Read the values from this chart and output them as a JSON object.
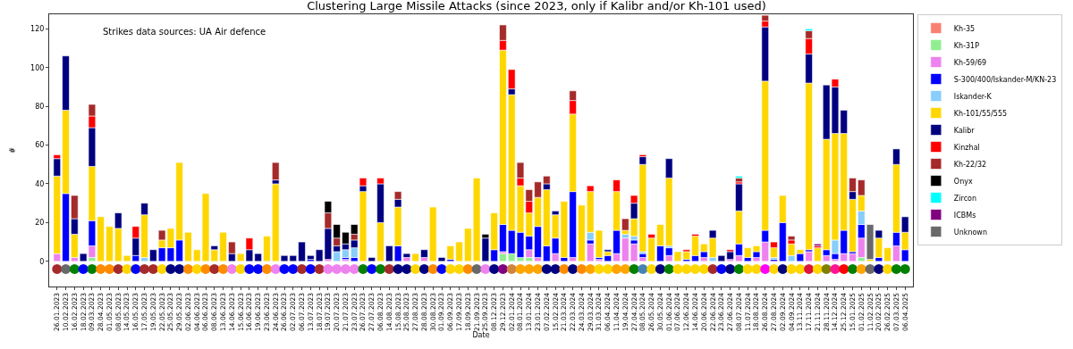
{
  "chart_data": {
    "type": "bar",
    "stacked": true,
    "title": "Clustering Large Missile Attacks (since 2023, only if Kalibr and/or Kh-101 used)",
    "xlabel": "Date",
    "ylabel": "#",
    "annotations": [
      "Strikes data sources: UA Air defence"
    ],
    "legend": "top right",
    "ylim": [
      -13,
      127.5
    ],
    "yticks": [
      0,
      20,
      40,
      60,
      80,
      100,
      120
    ],
    "categories": [
      "26.01.2023",
      "10.02.2023",
      "16.02.2023",
      "18.02.2023",
      "09.03.2023",
      "28.04.2023",
      "01.05.2023",
      "08.05.2023",
      "14.05.2023",
      "16.05.2023",
      "17.05.2023",
      "19.05.2023",
      "22.05.2023",
      "25.05.2023",
      "29.05.2023",
      "02.06.2023",
      "04.06.2023",
      "06.06.2023",
      "08.06.2023",
      "13.06.2023",
      "14.06.2023",
      "15.06.2023",
      "16.06.2023",
      "19.06.2023",
      "23.06.2023",
      "24.06.2023",
      "26.06.2023",
      "02.07.2023",
      "06.07.2023",
      "13.07.2023",
      "18.07.2023",
      "19.07.2023",
      "20.07.2023",
      "21.07.2023",
      "23.07.2023",
      "26.07.2023",
      "27.07.2023",
      "06.08.2023",
      "14.08.2023",
      "15.08.2023",
      "25.08.2023",
      "27.08.2023",
      "28.08.2023",
      "30.08.2023",
      "01.09.2023",
      "06.09.2023",
      "17.09.2023",
      "18.09.2023",
      "21.09.2023",
      "25.09.2023",
      "08.12.2023",
      "29.12.2023",
      "02.01.2024",
      "08.01.2024",
      "13.01.2024",
      "23.01.2024",
      "07.02.2024",
      "15.02.2024",
      "21.03.2024",
      "22.03.2024",
      "24.03.2024",
      "29.03.2024",
      "31.03.2024",
      "06.04.2024",
      "11.04.2024",
      "19.04.2024",
      "27.04.2024",
      "08.05.2024",
      "26.05.2024",
      "30.05.2024",
      "01.06.2024",
      "07.06.2024",
      "12.06.2024",
      "14.06.2024",
      "20.06.2024",
      "22.06.2024",
      "23.06.2024",
      "27.06.2024",
      "08.07.2024",
      "11.07.2024",
      "18.08.2024",
      "26.08.2024",
      "27.08.2024",
      "02.09.2024",
      "04.09.2024",
      "13.11.2024",
      "17.11.2024",
      "21.11.2024",
      "28.11.2024",
      "14.12.2024",
      "25.12.2024",
      "15.01.2025",
      "01.02.2025",
      "11.02.2025",
      "20.02.2025",
      "26.02.2025",
      "07.03.2025",
      "06.04.2025"
    ],
    "series": [
      {
        "name": "Kh-35",
        "color": "#fa8072",
        "values": [
          null,
          null,
          null,
          null,
          null,
          null,
          null,
          null,
          null,
          null,
          null,
          null,
          null,
          null,
          null,
          null,
          null,
          null,
          null,
          null,
          null,
          null,
          null,
          null,
          null,
          null,
          null,
          null,
          null,
          null,
          null,
          null,
          null,
          null,
          null,
          null,
          null,
          null,
          null,
          null,
          null,
          null,
          null,
          null,
          null,
          null,
          null,
          null,
          null,
          null,
          null,
          null,
          null,
          null,
          null,
          null,
          null,
          null,
          null,
          null,
          null,
          null,
          null,
          null,
          null,
          null,
          null,
          null,
          null,
          null,
          null,
          null,
          null,
          null,
          null,
          null,
          null,
          null,
          null,
          null,
          null,
          null,
          null,
          null,
          null,
          null,
          null,
          null,
          null,
          null,
          null,
          null,
          null,
          null,
          null,
          null,
          null,
          null
        ]
      },
      {
        "name": "Kh-31P",
        "color": "#90ee90",
        "values": [
          null,
          null,
          null,
          null,
          2,
          null,
          null,
          null,
          null,
          null,
          null,
          null,
          null,
          null,
          null,
          null,
          null,
          null,
          null,
          null,
          null,
          null,
          null,
          null,
          null,
          null,
          null,
          null,
          null,
          null,
          null,
          null,
          null,
          null,
          null,
          null,
          null,
          null,
          null,
          null,
          null,
          null,
          null,
          null,
          null,
          null,
          null,
          null,
          null,
          null,
          null,
          4,
          4,
          2,
          2,
          null,
          null,
          null,
          null,
          null,
          null,
          null,
          null,
          null,
          null,
          null,
          null,
          null,
          null,
          null,
          null,
          null,
          null,
          null,
          null,
          null,
          null,
          null,
          null,
          null,
          null,
          null,
          null,
          null,
          null,
          null,
          null,
          null,
          null,
          null,
          null,
          null,
          2,
          null,
          null,
          null,
          null,
          null
        ]
      },
      {
        "name": "Kh-59/69",
        "color": "#ee82ee",
        "values": [
          4,
          null,
          2,
          null,
          6,
          null,
          null,
          null,
          null,
          null,
          null,
          null,
          null,
          null,
          null,
          null,
          null,
          null,
          null,
          null,
          null,
          null,
          null,
          null,
          null,
          null,
          null,
          null,
          null,
          null,
          null,
          1,
          null,
          1,
          null,
          null,
          null,
          null,
          null,
          null,
          2,
          null,
          2,
          null,
          null,
          null,
          null,
          null,
          null,
          null,
          null,
          1,
          null,
          null,
          4,
          2,
          null,
          4,
          null,
          2,
          null,
          9,
          1,
          null,
          4,
          12,
          9,
          2,
          null,
          null,
          3,
          null,
          null,
          null,
          2,
          null,
          null,
          1,
          3,
          null,
          2,
          10,
          null,
          null,
          null,
          null,
          5,
          null,
          3,
          1,
          4,
          4,
          10,
          null,
          null,
          null,
          8,
          null
        ]
      },
      {
        "name": "S-300/400/Iskander-M/KN-23",
        "color": "#0000ff",
        "values": [
          null,
          35,
          null,
          null,
          13,
          null,
          null,
          null,
          null,
          3,
          null,
          null,
          7,
          7,
          11,
          null,
          null,
          null,
          null,
          null,
          null,
          null,
          null,
          null,
          null,
          null,
          null,
          null,
          null,
          1,
          null,
          null,
          null,
          1,
          2,
          null,
          null,
          null,
          null,
          8,
          null,
          null,
          null,
          null,
          null,
          1,
          null,
          null,
          null,
          null,
          6,
          14,
          12,
          13,
          7,
          16,
          8,
          8,
          2,
          34,
          null,
          2,
          1,
          3,
          12,
          null,
          2,
          2,
          null,
          8,
          4,
          null,
          1,
          3,
          3,
          null,
          null,
          null,
          6,
          2,
          3,
          6,
          1,
          20,
          null,
          4,
          1,
          null,
          3,
          3,
          12,
          1,
          7,
          null,
          2,
          null,
          7,
          6
        ]
      },
      {
        "name": "Iskander-K",
        "color": "#87cefa",
        "values": [
          null,
          null,
          null,
          null,
          null,
          null,
          null,
          null,
          null,
          null,
          2,
          null,
          null,
          null,
          null,
          null,
          null,
          null,
          null,
          null,
          null,
          null,
          null,
          null,
          null,
          null,
          null,
          null,
          null,
          null,
          null,
          null,
          5,
          4,
          5,
          null,
          null,
          null,
          null,
          null,
          null,
          null,
          null,
          null,
          null,
          null,
          null,
          null,
          null,
          null,
          null,
          null,
          null,
          null,
          null,
          null,
          null,
          null,
          null,
          null,
          null,
          4,
          null,
          null,
          null,
          2,
          2,
          1,
          null,
          null,
          1,
          null,
          null,
          null,
          null,
          2,
          null,
          null,
          null,
          null,
          null,
          null,
          1,
          null,
          3,
          null,
          null,
          null,
          null,
          7,
          null,
          null,
          7,
          null,
          null,
          null,
          null,
          null
        ]
      },
      {
        "name": "Kh-101/55/555",
        "color": "#ffd700",
        "values": [
          40,
          43,
          12,
          null,
          28,
          23,
          18,
          17,
          3,
          null,
          22,
          null,
          4,
          10,
          40,
          15,
          6,
          35,
          6,
          15,
          null,
          4,
          null,
          null,
          13,
          40,
          null,
          null,
          null,
          null,
          null,
          null,
          null,
          null,
          null,
          36,
          null,
          20,
          null,
          20,
          null,
          4,
          null,
          28,
          null,
          7,
          10,
          17,
          43,
          null,
          19,
          90,
          70,
          24,
          12,
          15,
          29,
          12,
          29,
          40,
          29,
          21,
          14,
          2,
          20,
          2,
          9,
          45,
          12,
          11,
          35,
          5,
          4,
          10,
          4,
          10,
          null,
          null,
          17,
          5,
          3,
          77,
          5,
          14,
          6,
          2,
          86,
          7,
          57,
          55,
          50,
          27,
          8,
          1,
          10,
          7,
          35,
          9
        ]
      },
      {
        "name": "Kalibr",
        "color": "#000080",
        "values": [
          9,
          28,
          8,
          4,
          20,
          null,
          null,
          8,
          null,
          9,
          6,
          6,
          null,
          null,
          null,
          null,
          null,
          null,
          2,
          null,
          4,
          null,
          6,
          4,
          null,
          2,
          3,
          3,
          10,
          2,
          6,
          16,
          3,
          3,
          4,
          3,
          2,
          20,
          8,
          4,
          2,
          null,
          4,
          null,
          2,
          null,
          null,
          null,
          null,
          12,
          null,
          null,
          3,
          null,
          null,
          null,
          3,
          2,
          null,
          null,
          null,
          null,
          null,
          1,
          null,
          null,
          8,
          4,
          null,
          null,
          10,
          null,
          null,
          null,
          null,
          4,
          3,
          4,
          14,
          null,
          null,
          28,
          null,
          null,
          null,
          null,
          15,
          null,
          28,
          24,
          12,
          4,
          null,
          null,
          4,
          null,
          8,
          8
        ]
      },
      {
        "name": "Kinzhal",
        "color": "#ff0000",
        "values": [
          2,
          null,
          null,
          null,
          6,
          null,
          null,
          null,
          null,
          6,
          null,
          null,
          null,
          null,
          null,
          null,
          null,
          null,
          null,
          null,
          null,
          null,
          6,
          null,
          null,
          null,
          null,
          null,
          null,
          null,
          null,
          null,
          null,
          null,
          null,
          4,
          null,
          3,
          null,
          null,
          null,
          null,
          null,
          null,
          null,
          null,
          null,
          null,
          null,
          null,
          null,
          5,
          10,
          4,
          6,
          null,
          null,
          null,
          null,
          7,
          null,
          3,
          null,
          null,
          6,
          null,
          4,
          1,
          2,
          null,
          null,
          null,
          1,
          1,
          null,
          null,
          null,
          1,
          1,
          null,
          null,
          3,
          3,
          null,
          2,
          null,
          8,
          1,
          null,
          4,
          null,
          null,
          null,
          null,
          null,
          null,
          null,
          null
        ]
      },
      {
        "name": "Kh-22/32",
        "color": "#a52a2a",
        "values": [
          null,
          null,
          12,
          null,
          6,
          null,
          null,
          null,
          null,
          null,
          null,
          null,
          5,
          null,
          null,
          null,
          null,
          null,
          null,
          null,
          6,
          null,
          null,
          null,
          null,
          9,
          null,
          null,
          null,
          null,
          null,
          8,
          4,
          null,
          3,
          null,
          null,
          null,
          null,
          4,
          null,
          null,
          null,
          null,
          null,
          null,
          null,
          null,
          null,
          null,
          null,
          8,
          null,
          8,
          6,
          8,
          4,
          null,
          null,
          5,
          null,
          null,
          null,
          null,
          null,
          6,
          null,
          null,
          null,
          null,
          null,
          null,
          null,
          null,
          null,
          null,
          null,
          null,
          2,
          null,
          null,
          3,
          null,
          null,
          2,
          null,
          4,
          null,
          null,
          null,
          null,
          7,
          8,
          null,
          null,
          null,
          null,
          null
        ]
      },
      {
        "name": "Onyx",
        "color": "#000000",
        "values": [
          null,
          null,
          null,
          null,
          null,
          null,
          null,
          null,
          null,
          null,
          null,
          null,
          null,
          null,
          null,
          null,
          null,
          null,
          null,
          null,
          null,
          null,
          null,
          null,
          null,
          null,
          null,
          null,
          null,
          null,
          null,
          6,
          7,
          6,
          5,
          null,
          null,
          null,
          null,
          null,
          null,
          null,
          null,
          null,
          null,
          null,
          null,
          null,
          null,
          2,
          null,
          null,
          null,
          null,
          null,
          null,
          null,
          null,
          null,
          null,
          null,
          null,
          null,
          null,
          null,
          null,
          null,
          null,
          null,
          null,
          null,
          null,
          null,
          null,
          null,
          null,
          null,
          null,
          null,
          null,
          null,
          null,
          null,
          null,
          null,
          null,
          null,
          null,
          null,
          null,
          null,
          null,
          null,
          null,
          null,
          null,
          null,
          null
        ]
      },
      {
        "name": "Zircon",
        "color": "#00ffff",
        "values": [
          null,
          null,
          null,
          null,
          null,
          null,
          null,
          null,
          null,
          null,
          null,
          null,
          null,
          null,
          null,
          null,
          null,
          null,
          null,
          null,
          null,
          null,
          null,
          null,
          null,
          null,
          null,
          null,
          null,
          null,
          null,
          null,
          null,
          null,
          null,
          null,
          null,
          null,
          null,
          null,
          null,
          null,
          null,
          null,
          null,
          null,
          null,
          null,
          null,
          null,
          null,
          null,
          null,
          null,
          null,
          null,
          null,
          null,
          null,
          null,
          null,
          null,
          null,
          null,
          null,
          null,
          null,
          null,
          null,
          null,
          null,
          null,
          null,
          null,
          null,
          null,
          null,
          null,
          1,
          null,
          null,
          null,
          null,
          null,
          null,
          null,
          1,
          null,
          null,
          null,
          null,
          null,
          null,
          null,
          null,
          null,
          null,
          null
        ]
      },
      {
        "name": "ICBMs",
        "color": "#800080",
        "values": [
          null,
          null,
          null,
          null,
          null,
          null,
          null,
          null,
          null,
          null,
          null,
          null,
          null,
          null,
          null,
          null,
          null,
          null,
          null,
          null,
          null,
          null,
          null,
          null,
          null,
          null,
          null,
          null,
          null,
          null,
          null,
          null,
          null,
          null,
          null,
          null,
          null,
          null,
          null,
          null,
          null,
          null,
          null,
          null,
          null,
          null,
          null,
          null,
          null,
          null,
          null,
          null,
          null,
          null,
          null,
          null,
          null,
          null,
          null,
          null,
          null,
          null,
          null,
          null,
          null,
          null,
          null,
          null,
          null,
          null,
          null,
          null,
          null,
          null,
          null,
          null,
          null,
          null,
          null,
          null,
          null,
          null,
          null,
          null,
          null,
          null,
          null,
          1,
          null,
          null,
          null,
          null,
          null,
          null,
          null,
          null,
          null,
          null
        ]
      },
      {
        "name": "Unknown",
        "color": "#696969",
        "values": [
          null,
          null,
          null,
          null,
          null,
          null,
          null,
          null,
          null,
          null,
          null,
          null,
          null,
          null,
          null,
          null,
          null,
          null,
          null,
          null,
          null,
          null,
          null,
          null,
          null,
          null,
          null,
          null,
          null,
          null,
          null,
          null,
          null,
          null,
          null,
          null,
          null,
          null,
          null,
          null,
          null,
          null,
          null,
          null,
          null,
          null,
          null,
          null,
          null,
          null,
          null,
          null,
          null,
          null,
          null,
          null,
          null,
          null,
          null,
          null,
          null,
          null,
          null,
          null,
          null,
          null,
          null,
          null,
          null,
          null,
          null,
          null,
          null,
          null,
          null,
          null,
          null,
          null,
          null,
          null,
          null,
          null,
          null,
          null,
          null,
          null,
          null,
          null,
          null,
          null,
          null,
          null,
          null,
          18,
          null,
          null,
          null,
          null
        ]
      },
      {
        "type": "scatter",
        "marker": "circle",
        "values": [
          -4,
          -4,
          -4,
          -4,
          -4,
          -4,
          -4,
          -4,
          -4,
          -4,
          -4,
          -4,
          -4,
          -4,
          -4,
          -4,
          -4,
          -4,
          -4,
          -4,
          -4,
          -4,
          -4,
          -4,
          -4,
          -4,
          -4,
          -4,
          -4,
          -4,
          -4,
          -4,
          -4,
          -4,
          -4,
          -4,
          -4,
          -4,
          -4,
          -4,
          -4,
          -4,
          -4,
          -4,
          -4,
          -4,
          -4,
          -4,
          -4,
          -4,
          -4,
          -4,
          -4,
          -4,
          -4,
          -4,
          -4,
          -4,
          -4,
          -4,
          -4,
          -4,
          -4,
          -4,
          -4,
          -4,
          -4,
          -4,
          -4,
          -4,
          -4,
          -4,
          -4,
          -4,
          -4,
          -4,
          -4,
          -4,
          -4,
          -4,
          -4,
          -4,
          -4,
          -4,
          -4,
          -4,
          -4,
          -4,
          -4,
          -4,
          -4,
          -4,
          -4,
          -4,
          -4,
          -4,
          -4,
          -4
        ],
        "colors": [
          "#a52a2a",
          "#696969",
          "#008000",
          "#0000ff",
          "#008000",
          "#ff8c00",
          "#ff8c00",
          "#a52a2a",
          "#ffd700",
          "#0000ff",
          "#a52a2a",
          "#a52a2a",
          "#ffd700",
          "#000080",
          "#000080",
          "#ff8c00",
          "#ffd700",
          "#ff8c00",
          "#a52a2a",
          "#ff8c00",
          "#ee82ee",
          "#ffd700",
          "#0000ff",
          "#0000ff",
          "#ff8c00",
          "#ee82ee",
          "#0000ff",
          "#0000ff",
          "#a52a2a",
          "#0000ff",
          "#a52a2a",
          "#ee82ee",
          "#ee82ee",
          "#ee82ee",
          "#ee82ee",
          "#008000",
          "#0000ff",
          "#008000",
          "#a52a2a",
          "#000080",
          "#000080",
          "#ffd700",
          "#000080",
          "#ff8c00",
          "#0000ff",
          "#ffd700",
          "#ffd700",
          "#ff8c00",
          "#696969",
          "#ee82ee",
          "#000080",
          "#800080",
          "#cd853f",
          "#ffa500",
          "#ffa500",
          "#ffa500",
          "#000080",
          "#000080",
          "#ff8c00",
          "#000080",
          "#ff8c00",
          "#ffa500",
          "#ffd700",
          "#ffd700",
          "#ffa500",
          "#ffa500",
          "#008000",
          "#4682b4",
          "#ffd700",
          "#000080",
          "#008000",
          "#ffd700",
          "#ffd700",
          "#ffd700",
          "#ffd700",
          "#a52a2a",
          "#0000ff",
          "#000080",
          "#008000",
          "#ffd700",
          "#ffd700",
          "#ff00ff",
          "#ffd700",
          "#000080",
          "#ffd700",
          "#ffd700",
          "#dc143c",
          "#ffd700",
          "#808000",
          "#ff1493",
          "#ff0000",
          "#008000",
          "#ffa500",
          "#696969",
          "#000080",
          "#ffd700",
          "#008000",
          "#008000"
        ]
      }
    ]
  }
}
